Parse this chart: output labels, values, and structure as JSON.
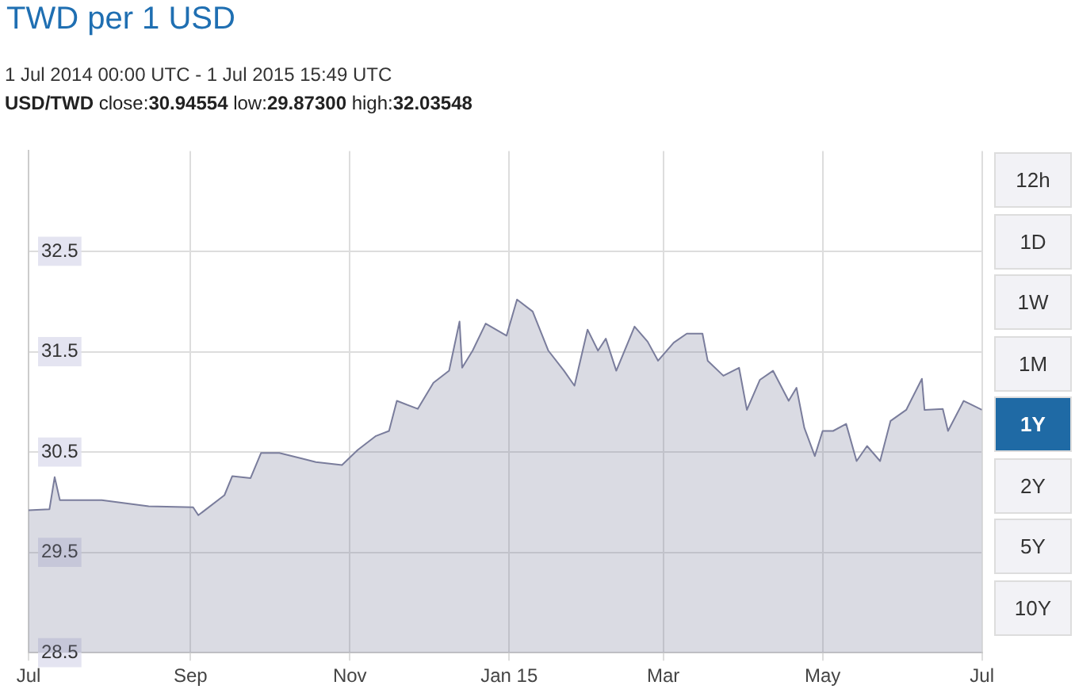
{
  "chart_data": {
    "type": "area",
    "title": "TWD per 1 USD",
    "subtitle": "1 Jul 2014 00:00 UTC - 1 Jul 2015 15:49 UTC",
    "annotations": [
      "USD/TWD close:30.94554 low:29.87300 high:32.03548",
      "12h",
      "1D",
      "1W",
      "1M",
      "1Y",
      "2Y",
      "5Y",
      "10Y"
    ],
    "x": [
      "2014-07-01",
      "2014-07-09",
      "2014-07-11",
      "2014-07-13",
      "2014-07-29",
      "2014-08-16",
      "2014-09-02",
      "2014-09-04",
      "2014-09-14",
      "2014-09-17",
      "2014-09-24",
      "2014-09-28",
      "2014-10-05",
      "2014-10-13",
      "2014-10-19",
      "2014-10-29",
      "2014-11-04",
      "2014-11-11",
      "2014-11-16",
      "2014-11-19",
      "2014-11-27",
      "2014-12-03",
      "2014-12-09",
      "2014-12-13",
      "2014-12-14",
      "2014-12-18",
      "2014-12-23",
      "2014-12-31",
      "2015-01-04",
      "2015-01-10",
      "2015-01-16",
      "2015-01-22",
      "2015-01-26",
      "2015-01-31",
      "2015-02-04",
      "2015-02-07",
      "2015-02-11",
      "2015-02-18",
      "2015-02-23",
      "2015-02-27",
      "2015-03-05",
      "2015-03-10",
      "2015-03-16",
      "2015-03-18",
      "2015-03-24",
      "2015-03-30",
      "2015-04-02",
      "2015-04-07",
      "2015-04-12",
      "2015-04-18",
      "2015-04-21",
      "2015-04-24",
      "2015-04-28",
      "2015-05-01",
      "2015-05-05",
      "2015-05-10",
      "2015-05-14",
      "2015-05-18",
      "2015-05-23",
      "2015-05-27",
      "2015-06-02",
      "2015-06-08",
      "2015-06-09",
      "2015-06-16",
      "2015-06-18",
      "2015-06-24",
      "2015-07-01"
    ],
    "series": [
      {
        "color": "#7a7d9c",
        "values": [
          29.92,
          29.93,
          30.25,
          30.02,
          30.02,
          29.96,
          29.95,
          29.87,
          30.07,
          30.26,
          30.24,
          30.49,
          30.49,
          30.44,
          30.4,
          30.37,
          30.52,
          30.66,
          30.71,
          31.01,
          30.93,
          31.19,
          31.31,
          31.8,
          31.34,
          31.51,
          31.78,
          31.66,
          32.02,
          31.9,
          31.51,
          31.31,
          31.16,
          31.72,
          31.51,
          31.63,
          31.31,
          31.75,
          31.6,
          31.41,
          31.59,
          31.68,
          31.68,
          31.41,
          31.26,
          31.34,
          30.92,
          31.22,
          31.31,
          31.01,
          31.14,
          30.74,
          30.46,
          30.71,
          30.71,
          30.78,
          30.41,
          30.56,
          30.41,
          30.81,
          30.92,
          31.23,
          30.92,
          30.93,
          30.71,
          31.01,
          30.92
        ]
      }
    ],
    "xlim": [
      "2014-07-01",
      "2015-07-01"
    ],
    "xticks": [
      {
        "value": "2014-07-01",
        "label": "Jul"
      },
      {
        "value": "2014-09-01",
        "label": "Sep"
      },
      {
        "value": "2014-11-01",
        "label": "Nov"
      },
      {
        "value": "2015-01-01",
        "label": "Jan 15"
      },
      {
        "value": "2015-03-01",
        "label": "Mar"
      },
      {
        "value": "2015-05-01",
        "label": "May"
      },
      {
        "value": "2015-07-01",
        "label": "Jul"
      }
    ],
    "ylim": [
      28.5,
      33.5
    ],
    "yticks": [
      28.5,
      29.5,
      30.5,
      31.5,
      32.5
    ],
    "grid": true,
    "marker": "none",
    "line_style": "solid"
  }
}
